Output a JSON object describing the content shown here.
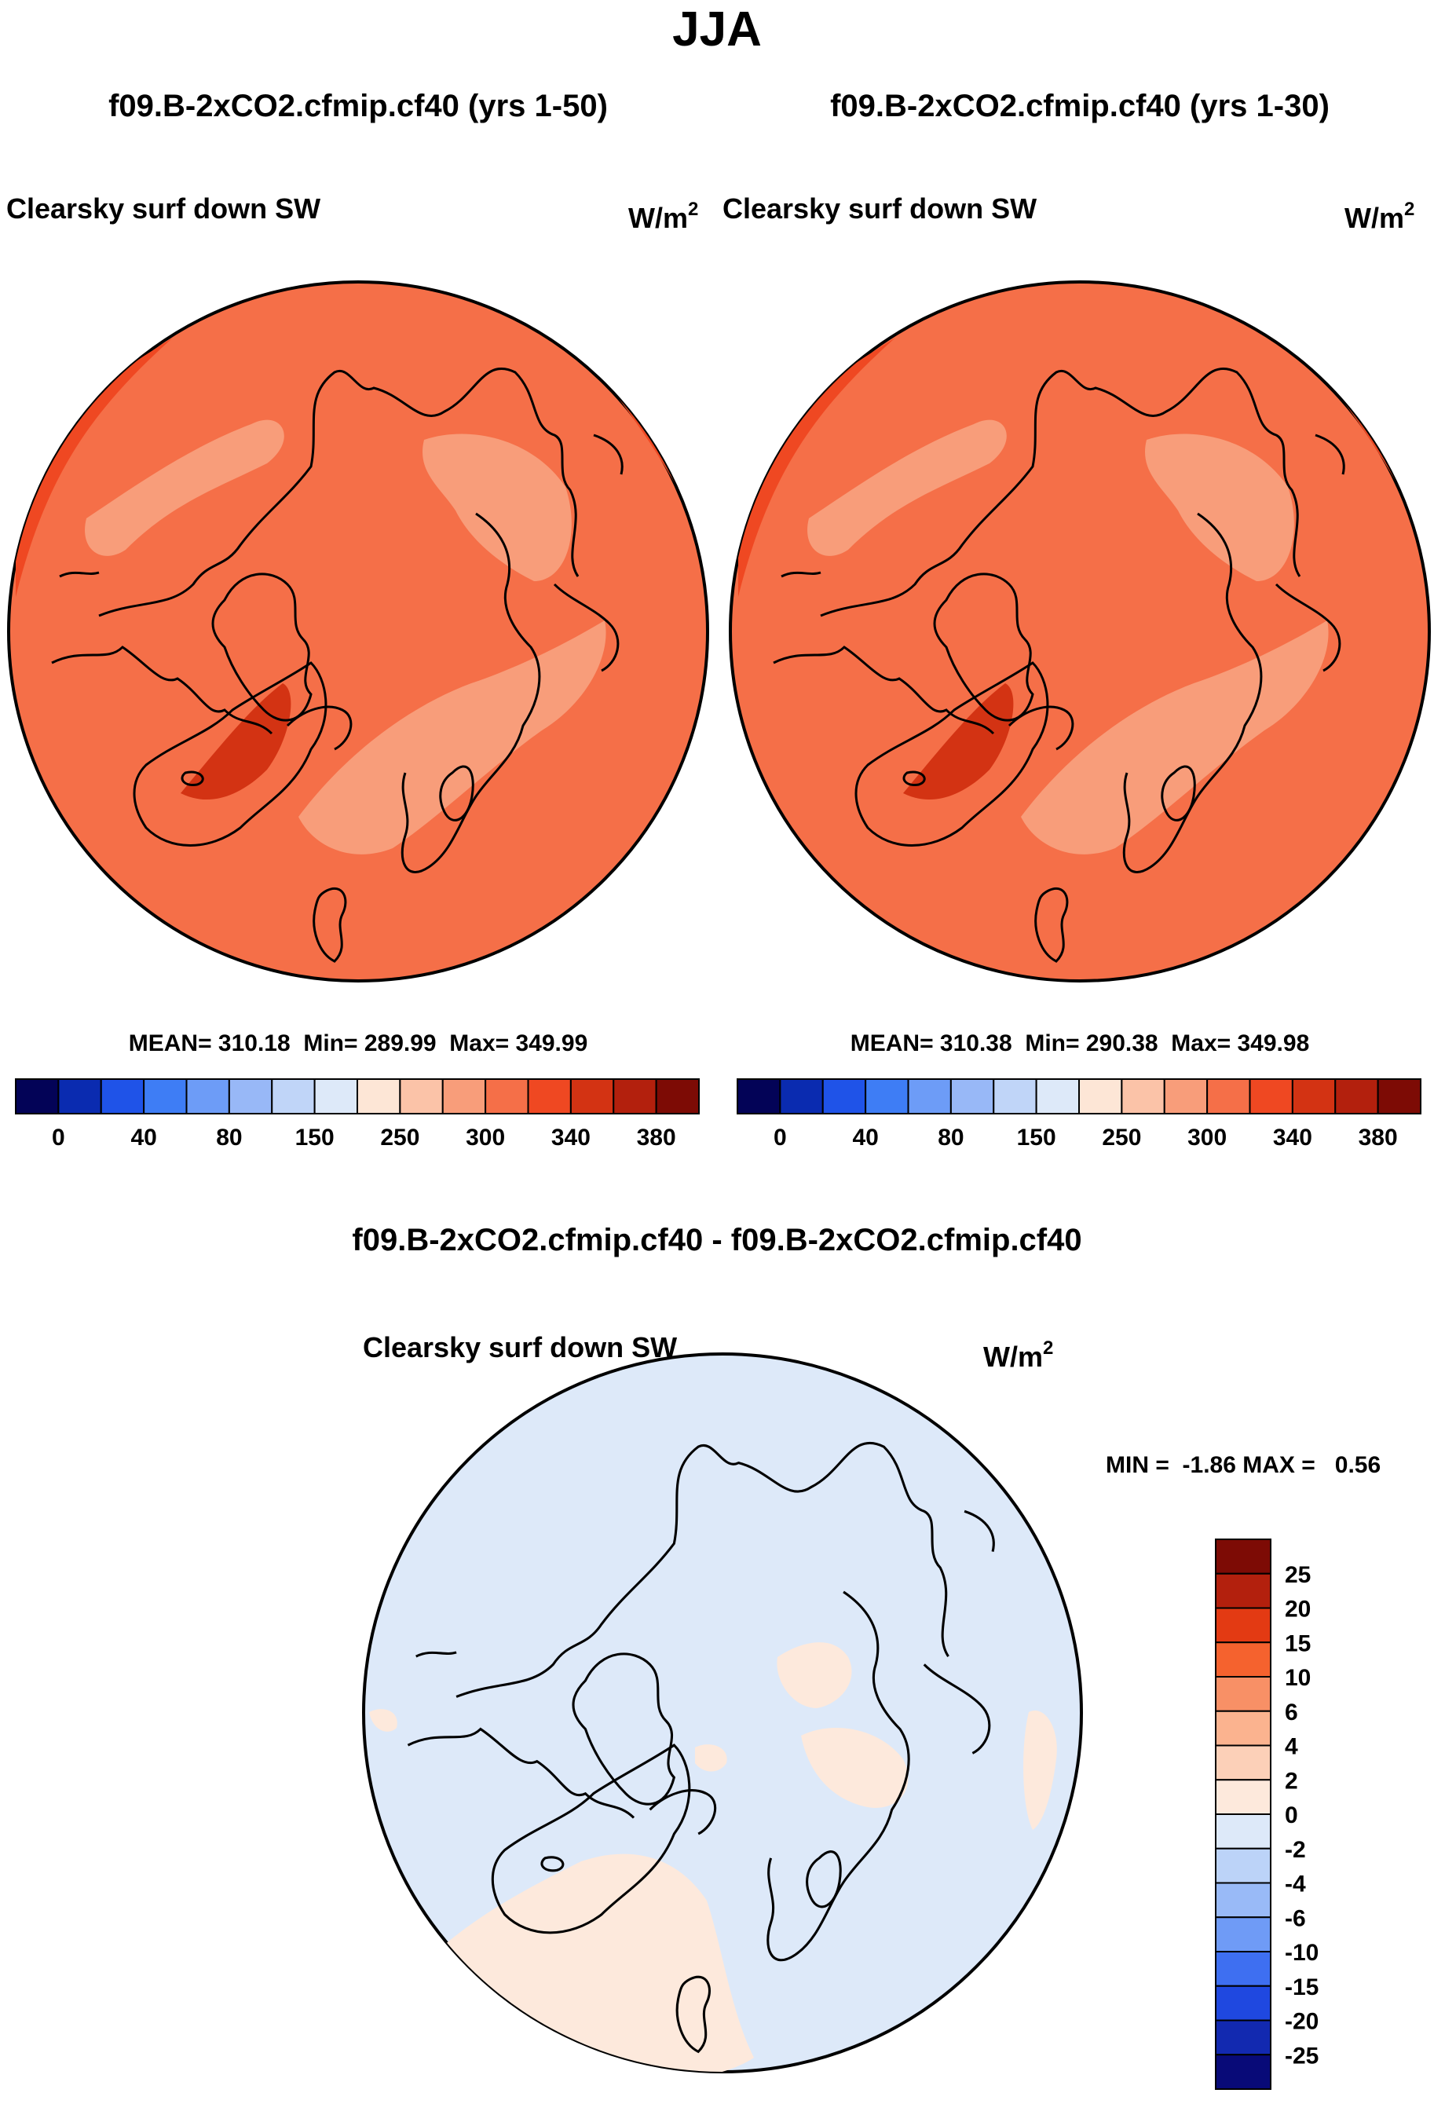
{
  "figure_title": "JJA",
  "chart_data": [
    {
      "type": "heatmap",
      "projection": "north polar stereographic",
      "title": "f09.B-2xCO2.cfmip.cf40 (yrs 1-50)",
      "variable": "Clearsky surf down SW",
      "units": "W/m",
      "units_exp": "2",
      "stats_text": "MEAN= 310.18  Min= 289.99  Max= 349.99",
      "stats": {
        "mean": 310.18,
        "min": 289.99,
        "max": 349.99
      },
      "colorbar": {
        "orientation": "horizontal",
        "tick_labels": [
          "0",
          "40",
          "80",
          "150",
          "250",
          "300",
          "340",
          "380"
        ],
        "colors": [
          "#030357",
          "#0a2bb0",
          "#1f53e8",
          "#3e7df5",
          "#6d9cf7",
          "#98b8f7",
          "#c0d5f8",
          "#dde9f9",
          "#fde6d6",
          "#fbc3a8",
          "#f89d7a",
          "#f56f48",
          "#ef4822",
          "#d33313",
          "#b3200d",
          "#7d0b05"
        ]
      },
      "field_levels": [
        "300",
        "340",
        "380"
      ]
    },
    {
      "type": "heatmap",
      "projection": "north polar stereographic",
      "title": "f09.B-2xCO2.cfmip.cf40 (yrs 1-30)",
      "variable": "Clearsky surf down SW",
      "units": "W/m",
      "units_exp": "2",
      "stats_text": "MEAN= 310.38  Min= 290.38  Max= 349.98",
      "stats": {
        "mean": 310.38,
        "min": 290.38,
        "max": 349.98
      },
      "colorbar": {
        "orientation": "horizontal",
        "tick_labels": [
          "0",
          "40",
          "80",
          "150",
          "250",
          "300",
          "340",
          "380"
        ],
        "colors": [
          "#030357",
          "#0a2bb0",
          "#1f53e8",
          "#3e7df5",
          "#6d9cf7",
          "#98b8f7",
          "#c0d5f8",
          "#dde9f9",
          "#fde6d6",
          "#fbc3a8",
          "#f89d7a",
          "#f56f48",
          "#ef4822",
          "#d33313",
          "#b3200d",
          "#7d0b05"
        ]
      },
      "field_levels": [
        "300",
        "340",
        "380"
      ]
    },
    {
      "type": "heatmap",
      "projection": "north polar stereographic",
      "title": "f09.B-2xCO2.cfmip.cf40 - f09.B-2xCO2.cfmip.cf40",
      "variable": "Clearsky surf down SW",
      "units": "W/m",
      "units_exp": "2",
      "stats_text": "MIN =  -1.86 MAX =   0.56",
      "stats": {
        "min": -1.86,
        "max": 0.56
      },
      "colorbar": {
        "orientation": "vertical",
        "tick_labels": [
          "25",
          "20",
          "15",
          "10",
          "6",
          "4",
          "2",
          "0",
          "-2",
          "-4",
          "-6",
          "-10",
          "-15",
          "-20",
          "-25"
        ],
        "colors": [
          "#7d0b05",
          "#b3200d",
          "#e33a13",
          "#f5622e",
          "#f89066",
          "#fbb38f",
          "#fcd0b8",
          "#fde9dc",
          "#dde9f9",
          "#bcd3f8",
          "#99baf7",
          "#6f9bf6",
          "#3e6ff1",
          "#1f48e0",
          "#1229b0",
          "#080a78"
        ]
      },
      "field_levels": [
        "-2 to 0",
        "0 to 2"
      ]
    }
  ]
}
